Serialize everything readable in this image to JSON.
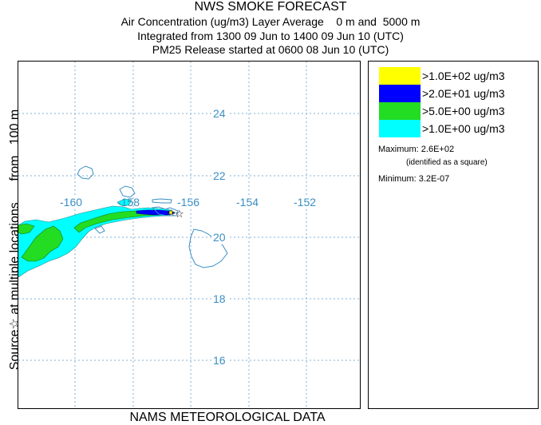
{
  "title": {
    "line1": "NWS SMOKE FORECAST",
    "line2": "Air Concentration (ug/m3) Layer Average    0 m and  5000 m",
    "line3": "Integrated from 1300 09 Jun to 1400 09 Jun 10 (UTC)",
    "line4": "PM25 Release started at 0600 08 Jun 10 (UTC)"
  },
  "side_label": {
    "source": "Source",
    "source_icon": "star-icon",
    "text": "at multiple locations",
    "height": "from   100 m"
  },
  "footer": "NAMS METEOROLOGICAL DATA",
  "map": {
    "longitude_labels": [
      "-160",
      "-158",
      "-156",
      "-154",
      "-152"
    ],
    "latitude_labels": [
      "24",
      "22",
      "20",
      "18",
      "16"
    ],
    "grid_color": "#7fb0d6",
    "label_color": "#3a8fc4",
    "coast_color": "#3a8fc4"
  },
  "legend": {
    "items": [
      {
        "label": ">1.0E+02 ug/m3",
        "color": "#ffff00"
      },
      {
        "label": ">2.0E+01 ug/m3",
        "color": "#0000ff"
      },
      {
        "label": ">5.0E+00 ug/m3",
        "color": "#22dd22"
      },
      {
        "label": ">1.0E+00 ug/m3",
        "color": "#00ffff"
      }
    ],
    "maximum_label": "Maximum: 2.6E+02",
    "maximum_note": "(identified as a square)",
    "minimum_label": "Minimum: 3.2E-07"
  }
}
